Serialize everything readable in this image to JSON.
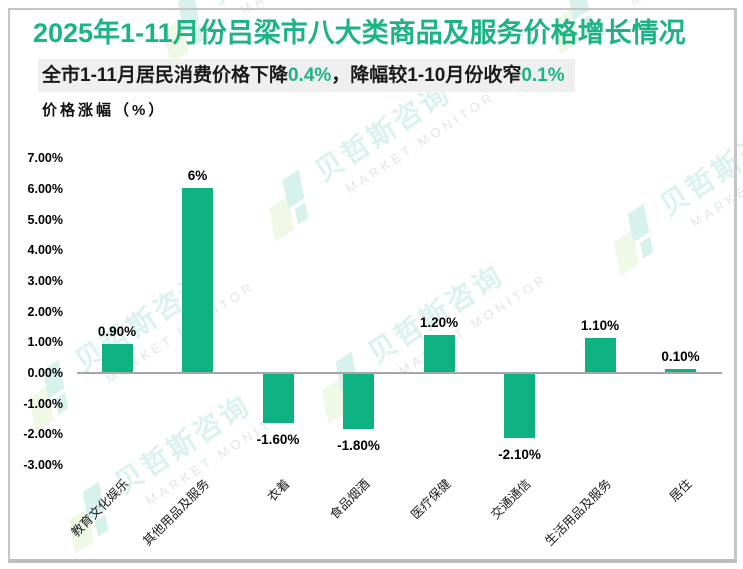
{
  "header": {
    "title": "2025年1-11月份吕梁市八大类商品及服务价格增长情况",
    "subtitle": {
      "part1": "全市1-11月居民消费价格下降",
      "value1": "0.4%",
      "part2": "，降幅较1-10月份收窄",
      "value2": "0.1%"
    },
    "axis_title": "价格涨幅（%）"
  },
  "watermark": {
    "cn": "贝哲斯咨询",
    "en": "MARKET MONITOR"
  },
  "colors": {
    "accent": "#1cb486",
    "bar": "#0db182",
    "subtitle_bg": "#efefef",
    "axis_line": "#a6a6a6",
    "frame_border": "#c5c5c5"
  },
  "chart_data": {
    "type": "bar",
    "title": "2025年1-11月份吕梁市八大类商品及服务价格增长情况",
    "categories": [
      "教育文化娱乐",
      "其他用品及服务",
      "衣着",
      "食品烟酒",
      "医疗保健",
      "交通通信",
      "生活用品及服务",
      "居住"
    ],
    "values": [
      0.9,
      6.0,
      -1.6,
      -1.8,
      1.2,
      -2.1,
      1.1,
      0.1
    ],
    "data_labels": [
      "0.90%",
      "6%",
      "-1.60%",
      "-1.80%",
      "1.20%",
      "-2.10%",
      "1.10%",
      "0.10%"
    ],
    "xlabel": "",
    "ylabel": "价格涨幅（%）",
    "ylim": [
      -3,
      7
    ],
    "ytick_step": 1,
    "yticks": [
      "7.00%",
      "6.00%",
      "5.00%",
      "4.00%",
      "3.00%",
      "2.00%",
      "1.00%",
      "0.00%",
      "-1.00%",
      "-2.00%",
      "-3.00%"
    ],
    "bar_color": "#0db182",
    "grid": false,
    "legend": false
  }
}
